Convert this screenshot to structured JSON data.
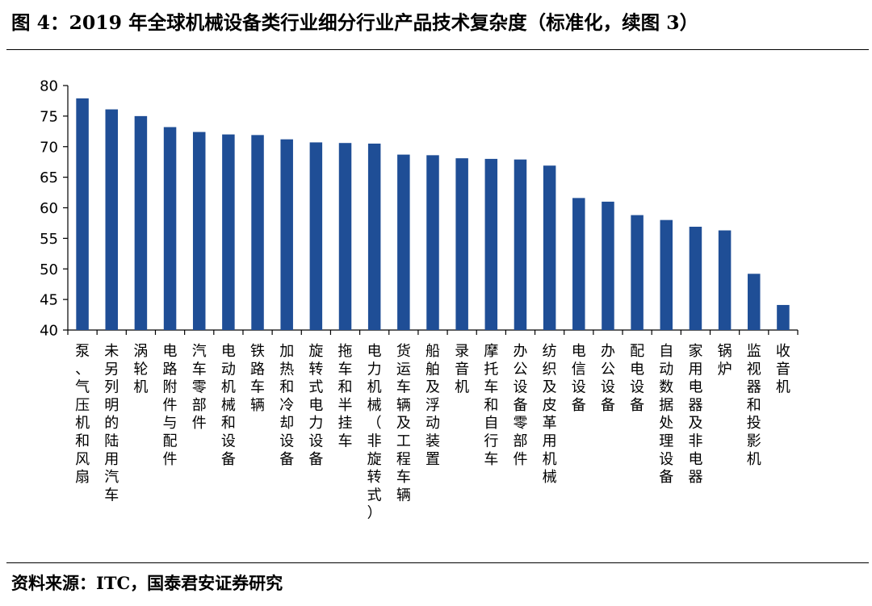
{
  "title": "图 4：2019 年全球机械设备类行业细分行业产品技术复杂度（标准化，续图 3）",
  "source": "资料来源：ITC，国泰君安证券研究",
  "colors": {
    "bar": "#1F4E96",
    "axis": "#000000"
  },
  "chart_data": {
    "type": "bar",
    "title": "图 4：2019 年全球机械设备类行业细分行业产品技术复杂度（标准化，续图 3）",
    "xlabel": "",
    "ylabel": "",
    "ylim": [
      40,
      80
    ],
    "yticks": [
      40,
      45,
      50,
      55,
      60,
      65,
      70,
      75,
      80
    ],
    "grid": false,
    "legend": "none",
    "categories": [
      "泵、气压机和风扇",
      "未另列明的陆用汽车",
      "涡轮机",
      "电路附件与配件",
      "汽车零部件",
      "电动机械和设备",
      "铁路车辆",
      "加热和冷却设备",
      "旋转式电力设备",
      "拖车和半挂车",
      "电力机械（非旋转式）",
      "货运车辆及工程车辆",
      "船舶及浮动装置",
      "录音机",
      "摩托车和自行车",
      "办公设备零部件",
      "纺织及皮革用机械",
      "电信设备",
      "办公设备",
      "配电设备",
      "自动数据处理设备",
      "家用电器及非电器",
      "锅炉",
      "监视器和投影机",
      "收音机"
    ],
    "values": [
      77.9,
      76.1,
      75.0,
      73.2,
      72.4,
      72.0,
      71.9,
      71.2,
      70.7,
      70.6,
      70.5,
      68.7,
      68.6,
      68.1,
      68.0,
      67.9,
      66.9,
      61.6,
      61.0,
      58.8,
      58.0,
      56.9,
      56.3,
      49.2,
      44.1
    ]
  }
}
